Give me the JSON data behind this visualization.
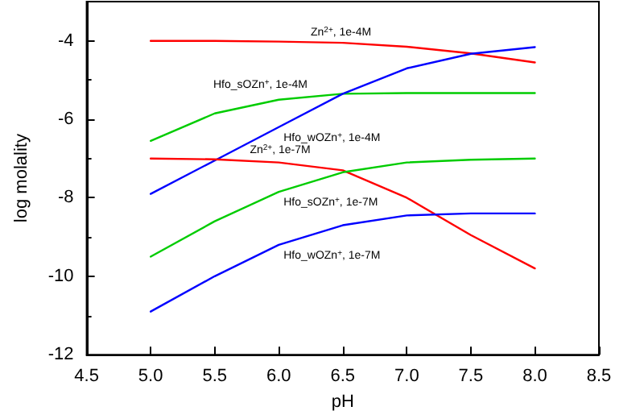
{
  "chart_data": {
    "type": "line",
    "xlabel": "pH",
    "ylabel": "log molality",
    "xlim": [
      4.5,
      8.5
    ],
    "xticks": [
      {
        "value": 4.5,
        "label": "4.5"
      },
      {
        "value": 5,
        "label": "5.0"
      },
      {
        "value": 5.5,
        "label": "5.5"
      },
      {
        "value": 6,
        "label": "6.0"
      },
      {
        "value": 6.5,
        "label": "6.5"
      },
      {
        "value": 7,
        "label": "7.0"
      },
      {
        "value": 7.5,
        "label": "7.5"
      },
      {
        "value": 8,
        "label": "8.0"
      },
      {
        "value": 8.5,
        "label": "8.5"
      }
    ],
    "ylim": [
      -12,
      -3
    ],
    "yticks": [
      -12,
      -10,
      -8,
      -6,
      -4
    ],
    "grid": false,
    "marker": "none",
    "line_style": "solid",
    "x": [
      5,
      5.5,
      6,
      6.5,
      7,
      7.5,
      8
    ],
    "series": [
      {
        "color": "#ff0000",
        "values": [
          -4,
          -4,
          -4.02,
          -4.05,
          -4.15,
          -4.32,
          -4.55
        ]
      },
      {
        "color": "#00cc00",
        "values": [
          -6.55,
          -5.85,
          -5.5,
          -5.35,
          -5.33,
          -5.33,
          -5.33
        ]
      },
      {
        "color": "#0000ff",
        "values": [
          -7.9,
          -7.05,
          -6.2,
          -5.35,
          -4.7,
          -4.33,
          -4.16
        ]
      },
      {
        "color": "#ff0000",
        "values": [
          -7,
          -7.02,
          -7.1,
          -7.3,
          -8,
          -8.95,
          -9.8
        ]
      },
      {
        "color": "#00cc00",
        "values": [
          -9.5,
          -8.6,
          -7.85,
          -7.35,
          -7.1,
          -7.03,
          -7
        ]
      },
      {
        "color": "#0000ff",
        "values": [
          -10.9,
          -10,
          -9.2,
          -8.7,
          -8.45,
          -8.4,
          -8.4
        ]
      }
    ],
    "annotations": [
      {
        "text": "Zn$^{2+}$, 1e-4M",
        "x": 6.25,
        "y": -4
      },
      {
        "text": "Hfo_sOZn$^{+}$, 1e-4M",
        "x": 6.25,
        "y": -5.35
      },
      {
        "text": "Hfo_wOZn$^{+}$, 1e-4M",
        "x": 6,
        "y": -6.2
      },
      {
        "text": "Zn$^{2+}$, 1e-7M",
        "x": 5.75,
        "y": -7
      },
      {
        "text": "Hfo_sOZn$^{+}$, 1e-7M",
        "x": 6,
        "y": -7.85
      },
      {
        "text": "Hfo_wOZn$^{+}$, 1e-7M",
        "x": 6,
        "y": -9.2
      }
    ]
  }
}
